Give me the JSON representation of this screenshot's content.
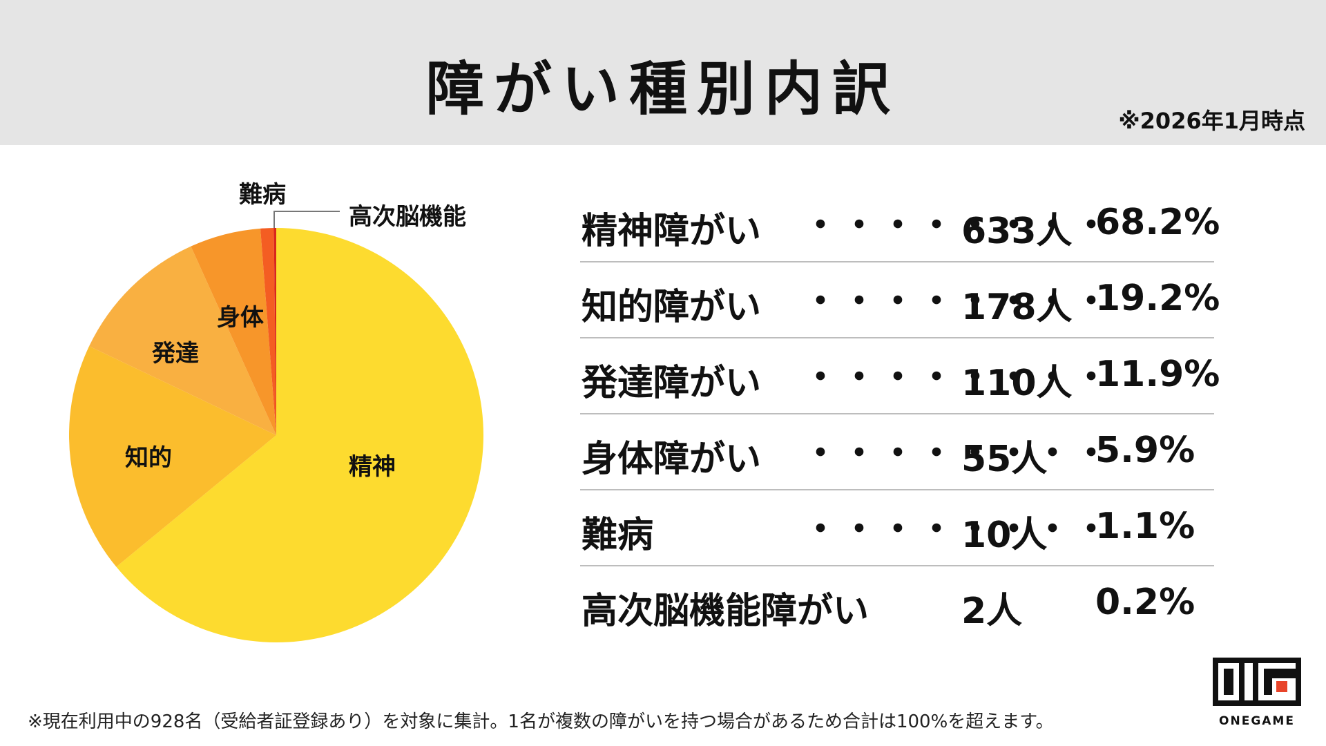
{
  "header": {
    "title": "障がい種別内訳",
    "as_of": "※2026年1月時点"
  },
  "chart_data": {
    "type": "pie",
    "slices": [
      {
        "label": "精神",
        "value": 68.2,
        "color": "#fddb2f"
      },
      {
        "label": "知的",
        "value": 19.2,
        "color": "#fbbd2d"
      },
      {
        "label": "発達",
        "value": 11.9,
        "color": "#f9b041"
      },
      {
        "label": "身体",
        "value": 5.9,
        "color": "#f7962a"
      },
      {
        "label": "難病",
        "value": 1.1,
        "color": "#f45d22"
      },
      {
        "label": "高次脳機能",
        "value": 0.2,
        "color": "#d9261c"
      }
    ]
  },
  "table": {
    "dots": "・・・・・・・・",
    "rows": [
      {
        "name": "精神障がい",
        "count": "633人",
        "percent": "68.2%",
        "show_dots": true
      },
      {
        "name": "知的障がい",
        "count": "178人",
        "percent": "19.2%",
        "show_dots": true
      },
      {
        "name": "発達障がい",
        "count": "110人",
        "percent": "11.9%",
        "show_dots": true
      },
      {
        "name": "身体障がい",
        "count": "55人",
        "percent": "5.9%",
        "show_dots": true
      },
      {
        "name": "難病",
        "count": "10人",
        "percent": "1.1%",
        "show_dots": true
      },
      {
        "name": "高次脳機能障がい",
        "count": "2人",
        "percent": "0.2%",
        "show_dots": false
      }
    ]
  },
  "footnote": "※現在利用中の928名（受給者証登録あり）を対象に集計。1名が複数の障がいを持つ場合があるため合計は100%を超えます。",
  "logo": {
    "text": "ONEGAME",
    "accent_color": "#e8442a"
  }
}
